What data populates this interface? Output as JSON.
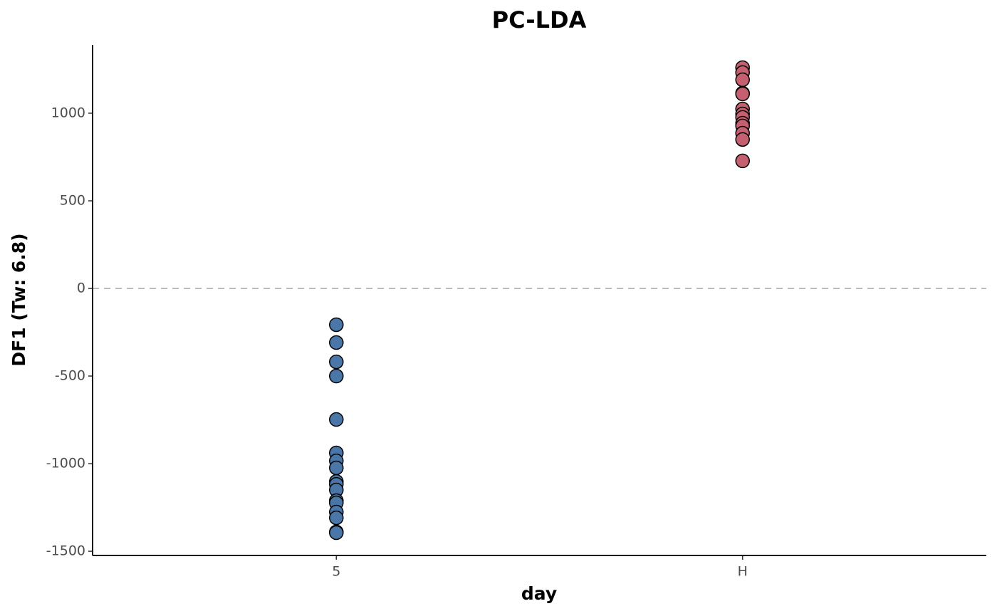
{
  "chart_data": {
    "type": "strip",
    "title": "PC-LDA",
    "x_label": "day",
    "y_label": "DF1 (Tw: 6.8)",
    "categories": [
      "5",
      "H"
    ],
    "series": [
      {
        "color": "#4a77a8",
        "values": [
          -207,
          -309,
          -419,
          -500,
          -748,
          -939,
          -984,
          -1024,
          -1102,
          -1118,
          -1150,
          -1211,
          -1224,
          -1276,
          -1309,
          -1390,
          -1394
        ]
      },
      {
        "color": "#c4606f",
        "values": [
          1260,
          1232,
          1191,
          1114,
          1110,
          1024,
          996,
          976,
          943,
          927,
          886,
          850,
          728
        ]
      }
    ],
    "ylim": [
      -1524,
      1390
    ],
    "yticks": [
      -1500,
      -1000,
      -500,
      0,
      500,
      1000
    ],
    "reference_line": 0,
    "grid": false
  }
}
